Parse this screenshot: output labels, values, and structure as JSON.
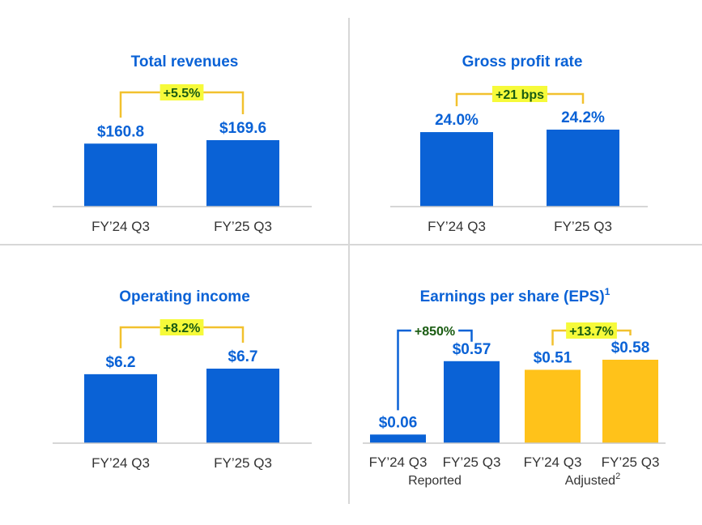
{
  "colors": {
    "primary": "#0a62d6",
    "adjusted": "#ffc21a",
    "bracket": "#f2c12e",
    "bracket_blue": "#0a62d6",
    "highlight": "#f6fa3a",
    "delta_text": "#1a5c12"
  },
  "chart_data": [
    {
      "id": "total-revenues",
      "type": "bar",
      "title": "Total revenues",
      "categories": [
        "FY’24 Q3",
        "FY’25 Q3"
      ],
      "values": [
        160.8,
        169.6
      ],
      "value_labels": [
        "$160.8",
        "$169.6"
      ],
      "change": "+5.5%"
    },
    {
      "id": "gross-profit-rate",
      "type": "bar",
      "title": "Gross profit rate",
      "categories": [
        "FY’24 Q3",
        "FY’25 Q3"
      ],
      "values": [
        24.0,
        24.2
      ],
      "value_labels": [
        "24.0%",
        "24.2%"
      ],
      "change": "+21 bps"
    },
    {
      "id": "operating-income",
      "type": "bar",
      "title": "Operating income",
      "categories": [
        "FY’24 Q3",
        "FY’25 Q3"
      ],
      "values": [
        6.2,
        6.7
      ],
      "value_labels": [
        "$6.2",
        "$6.7"
      ],
      "change": "+8.2%"
    },
    {
      "id": "eps",
      "type": "bar",
      "title": "Earnings per share (EPS)",
      "title_sup": "1",
      "categories": [
        "FY’24 Q3",
        "FY’25 Q3",
        "FY’24 Q3",
        "FY’25 Q3"
      ],
      "values": [
        0.06,
        0.57,
        0.51,
        0.58
      ],
      "value_labels": [
        "$0.06",
        "$0.57",
        "$0.51",
        "$0.58"
      ],
      "groups": [
        {
          "label": "Reported",
          "sup": "",
          "change": "+850%"
        },
        {
          "label": "Adjusted",
          "sup": "2",
          "change": "+13.7%"
        }
      ]
    }
  ]
}
